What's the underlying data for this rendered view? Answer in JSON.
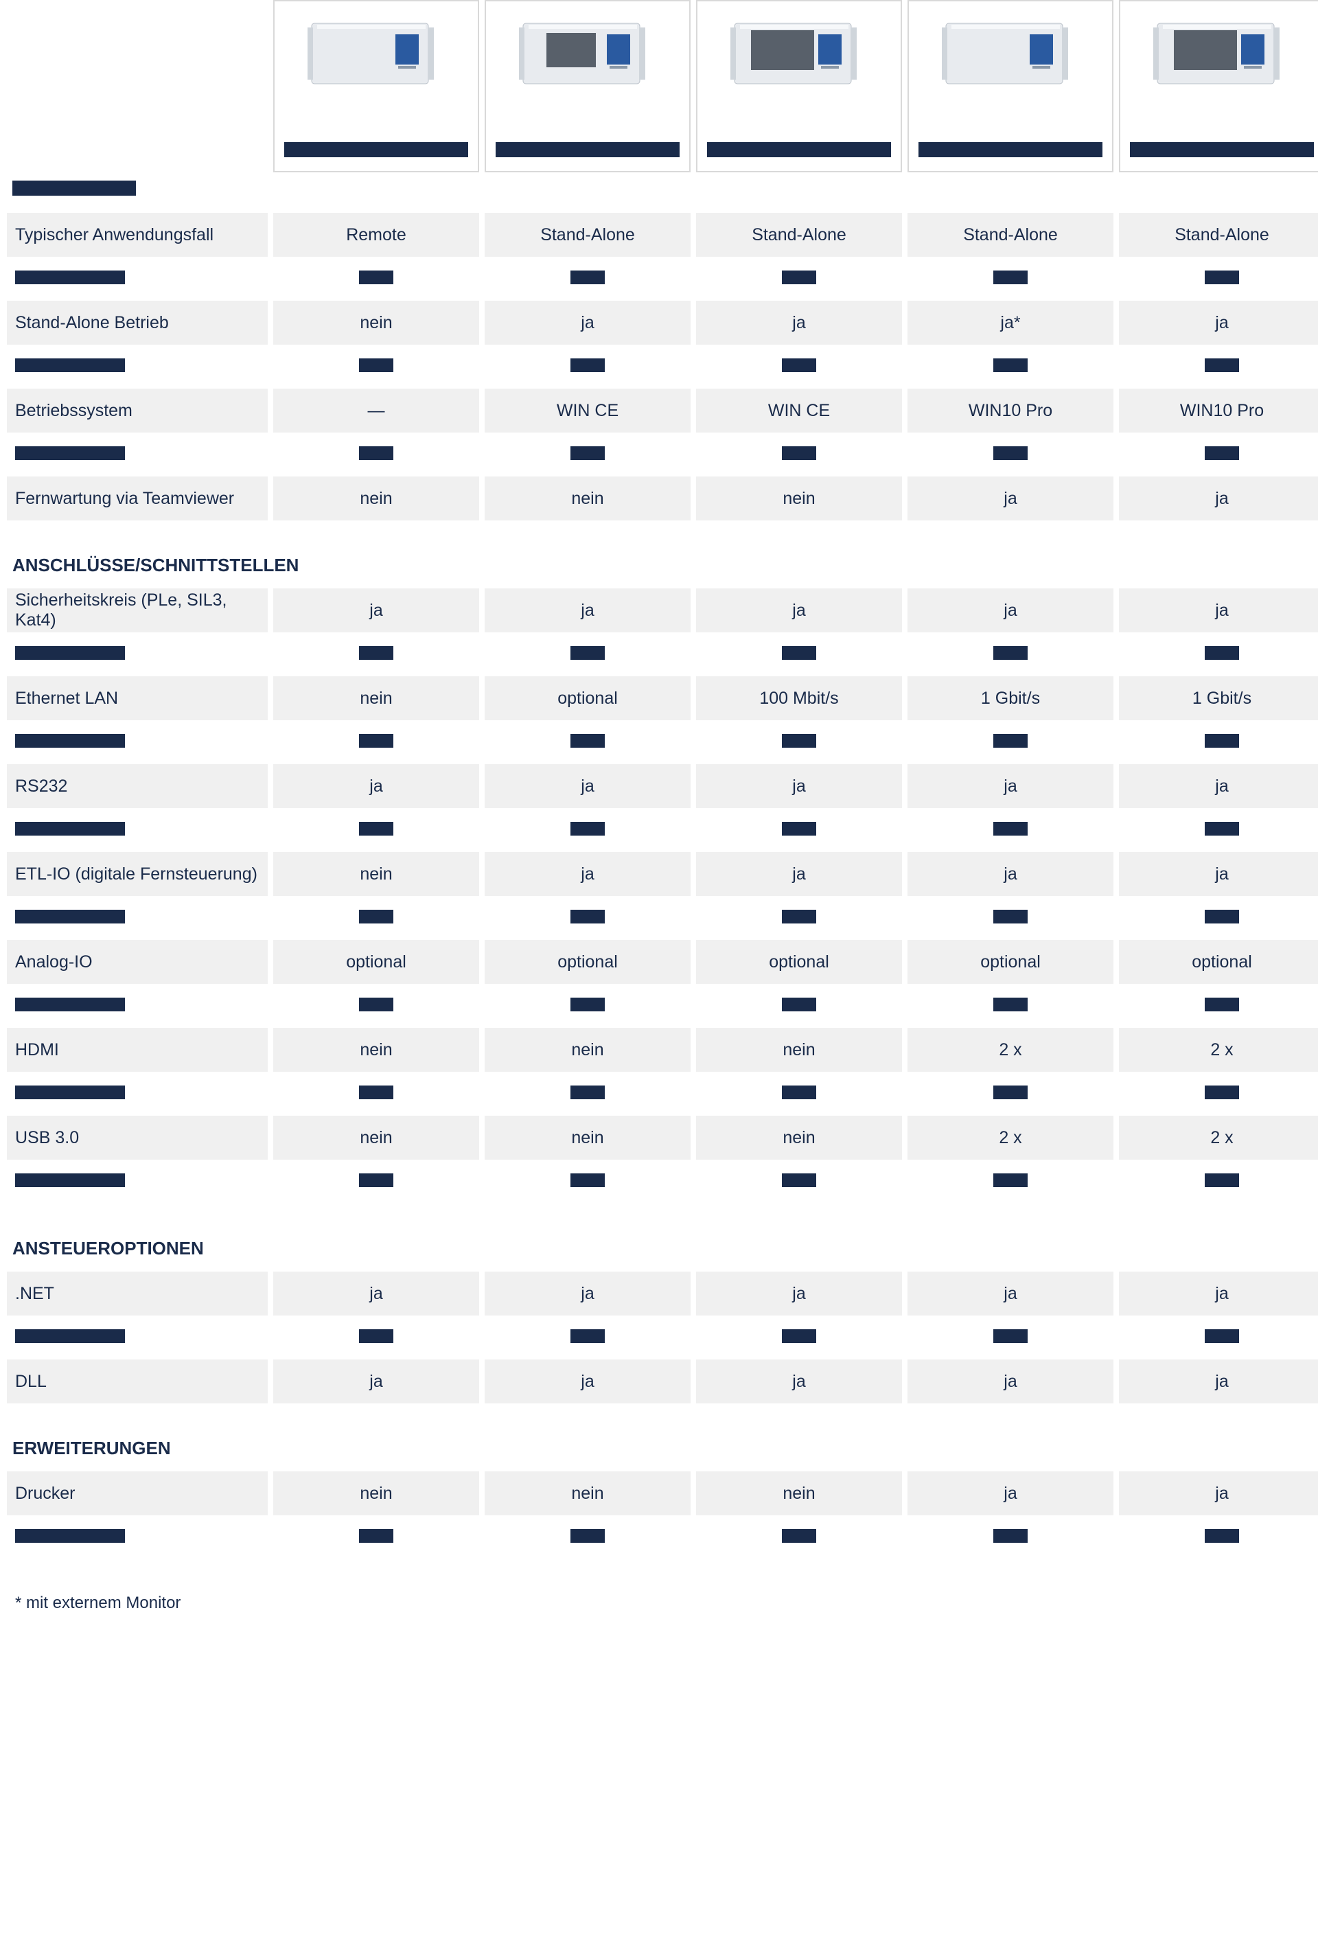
{
  "colors": {
    "text": "#1a2b4a",
    "row_grey": "#f0f0f0",
    "border": "#d9d9d9",
    "redact": "#1a2b4a",
    "bg": "#ffffff"
  },
  "products": [
    {
      "id": "p1",
      "screen": "small"
    },
    {
      "id": "p2",
      "screen": "mid"
    },
    {
      "id": "p3",
      "screen": "large"
    },
    {
      "id": "p4",
      "screen": "none"
    },
    {
      "id": "p5",
      "screen": "large"
    }
  ],
  "sections": [
    {
      "title_redacted": true,
      "title": "",
      "rows": [
        {
          "label": "Typischer Anwendungsfall",
          "vals": [
            "Remote",
            "Stand-Alone",
            "Stand-Alone",
            "Stand-Alone",
            "Stand-Alone"
          ],
          "grey": true
        },
        {
          "label_redacted": true,
          "vals_redacted": [
            true,
            true,
            true,
            true,
            true
          ],
          "grey": false
        },
        {
          "label": "Stand-Alone Betrieb",
          "vals": [
            "nein",
            "ja",
            "ja",
            "ja*",
            "ja"
          ],
          "grey": true
        },
        {
          "label_redacted": true,
          "vals_redacted": [
            true,
            true,
            true,
            true,
            true
          ],
          "grey": false
        },
        {
          "label": "Betriebssystem",
          "vals": [
            "—",
            "WIN CE",
            "WIN CE",
            "WIN10 Pro",
            "WIN10 Pro"
          ],
          "grey": true
        },
        {
          "label_redacted": true,
          "vals_redacted": [
            true,
            true,
            true,
            true,
            true
          ],
          "grey": false
        },
        {
          "label": "Fernwartung via Teamviewer",
          "vals": [
            "nein",
            "nein",
            "nein",
            "ja",
            "ja"
          ],
          "grey": true
        }
      ]
    },
    {
      "title": "ANSCHLÜSSE/SCHNITTSTELLEN",
      "rows": [
        {
          "label": "Sicherheitskreis (PLe, SIL3, Kat4)",
          "vals": [
            "ja",
            "ja",
            "ja",
            "ja",
            "ja"
          ],
          "grey": true
        },
        {
          "label_redacted": true,
          "vals_redacted": [
            true,
            true,
            true,
            true,
            true
          ],
          "grey": false
        },
        {
          "label": "Ethernet LAN",
          "vals": [
            "nein",
            "optional",
            "100 Mbit/s",
            "1 Gbit/s",
            "1 Gbit/s"
          ],
          "grey": true
        },
        {
          "label_redacted": true,
          "vals_redacted": [
            true,
            true,
            true,
            true,
            true
          ],
          "grey": false
        },
        {
          "label": "RS232",
          "vals": [
            "ja",
            "ja",
            "ja",
            "ja",
            "ja"
          ],
          "grey": true
        },
        {
          "label_redacted": true,
          "vals_redacted": [
            true,
            true,
            true,
            true,
            true
          ],
          "grey": false
        },
        {
          "label": "ETL-IO (digitale Fernsteuerung)",
          "vals": [
            "nein",
            "ja",
            "ja",
            "ja",
            "ja"
          ],
          "grey": true
        },
        {
          "label_redacted": true,
          "vals_redacted": [
            true,
            true,
            true,
            true,
            true
          ],
          "grey": false
        },
        {
          "label": "Analog-IO",
          "vals": [
            "optional",
            "optional",
            "optional",
            "optional",
            "optional"
          ],
          "grey": true
        },
        {
          "label_redacted": true,
          "vals_redacted": [
            true,
            true,
            true,
            true,
            true
          ],
          "grey": false
        },
        {
          "label": "HDMI",
          "vals": [
            "nein",
            "nein",
            "nein",
            "2 x",
            "2 x"
          ],
          "grey": true
        },
        {
          "label_redacted": true,
          "vals_redacted": [
            true,
            true,
            true,
            true,
            true
          ],
          "grey": false
        },
        {
          "label": "USB 3.0",
          "vals": [
            "nein",
            "nein",
            "nein",
            "2 x",
            "2 x"
          ],
          "grey": true
        },
        {
          "label_redacted": true,
          "vals_redacted": [
            true,
            true,
            true,
            true,
            true
          ],
          "grey": false
        }
      ]
    },
    {
      "title": "ANSTEUEROPTIONEN",
      "rows": [
        {
          "label": ".NET",
          "vals": [
            "ja",
            "ja",
            "ja",
            "ja",
            "ja"
          ],
          "grey": true
        },
        {
          "label_redacted": true,
          "vals_redacted": [
            true,
            true,
            true,
            true,
            true
          ],
          "grey": false
        },
        {
          "label": "DLL",
          "vals": [
            "ja",
            "ja",
            "ja",
            "ja",
            "ja"
          ],
          "grey": true
        }
      ]
    },
    {
      "title": "ERWEITERUNGEN",
      "rows": [
        {
          "label": "Drucker",
          "vals": [
            "nein",
            "nein",
            "nein",
            "ja",
            "ja"
          ],
          "grey": true
        },
        {
          "label_redacted": true,
          "vals_redacted": [
            true,
            true,
            true,
            true,
            true
          ],
          "grey": false
        }
      ]
    }
  ],
  "footnote": "* mit externem Monitor"
}
